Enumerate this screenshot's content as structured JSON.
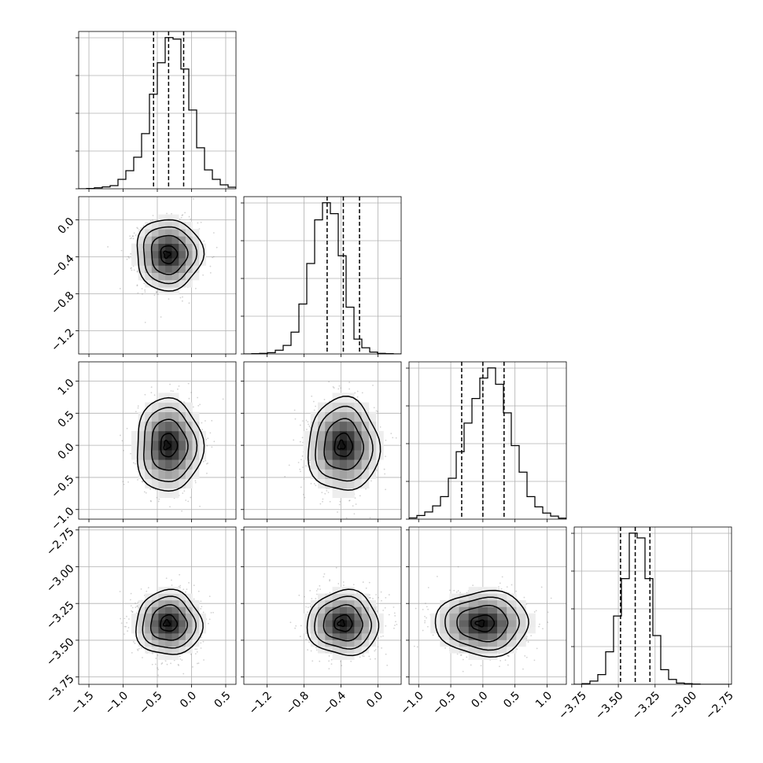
{
  "chart_data": {
    "type": "corner",
    "grid": true,
    "parameters": [
      {
        "range": [
          -1.65,
          0.65
        ],
        "ticks": [
          -1.5,
          -1.0,
          -0.5,
          0.0,
          0.5
        ],
        "tick_labels": [
          "−1.5",
          "−1.0",
          "−0.5",
          "0.0",
          "0.5"
        ],
        "quantiles": [
          -0.555,
          -0.335,
          -0.115
        ]
      },
      {
        "range": [
          -1.45,
          0.25
        ],
        "ticks": [
          -1.2,
          -0.8,
          -0.4,
          0.0
        ],
        "tick_labels": [
          "−1.2",
          "−0.8",
          "−0.4",
          "0.0"
        ],
        "quantiles": [
          -0.55,
          -0.375,
          -0.2
        ]
      },
      {
        "range": [
          -1.15,
          1.3
        ],
        "ticks": [
          -1.0,
          -0.5,
          0.0,
          0.5,
          1.0
        ],
        "tick_labels": [
          "−1.0",
          "−0.5",
          "0.0",
          "0.5",
          "1.0"
        ],
        "quantiles": [
          -0.33,
          0.0,
          0.33
        ]
      },
      {
        "range": [
          -3.8,
          -2.73
        ],
        "ticks": [
          -3.75,
          -3.5,
          -3.25,
          -3.0,
          -2.75
        ],
        "tick_labels": [
          "−3.75",
          "−3.50",
          "−3.25",
          "−3.00",
          "−2.75"
        ],
        "quantiles": [
          -3.485,
          -3.385,
          -3.285
        ]
      }
    ],
    "marginals": [
      {
        "edges_start": -1.65,
        "bin_width": 0.115,
        "counts": [
          0,
          2,
          6,
          12,
          20,
          60,
          115,
          200,
          350,
          600,
          800,
          960,
          950,
          760,
          500,
          260,
          120,
          60,
          25,
          10
        ]
      },
      {
        "edges_start": -1.45,
        "bin_width": 0.085,
        "counts": [
          0,
          2,
          4,
          8,
          24,
          55,
          140,
          320,
          580,
          860,
          970,
          900,
          630,
          300,
          95,
          40,
          12,
          4,
          2,
          0
        ]
      },
      {
        "edges_start": -1.15,
        "bin_width": 0.1225,
        "counts": [
          6,
          18,
          35,
          65,
          110,
          200,
          330,
          470,
          590,
          690,
          740,
          660,
          520,
          360,
          230,
          110,
          60,
          30,
          15,
          5
        ]
      },
      {
        "edges_start": -3.8,
        "bin_width": 0.0535,
        "counts": [
          0,
          4,
          20,
          60,
          200,
          420,
          650,
          930,
          900,
          650,
          300,
          90,
          30,
          8,
          4,
          2,
          0,
          0,
          0,
          0
        ]
      }
    ],
    "joint_stats": {
      "means": [
        -0.335,
        -0.375,
        0.0,
        -3.385
      ],
      "sigmas": [
        0.22,
        0.175,
        0.33,
        0.1
      ]
    }
  }
}
